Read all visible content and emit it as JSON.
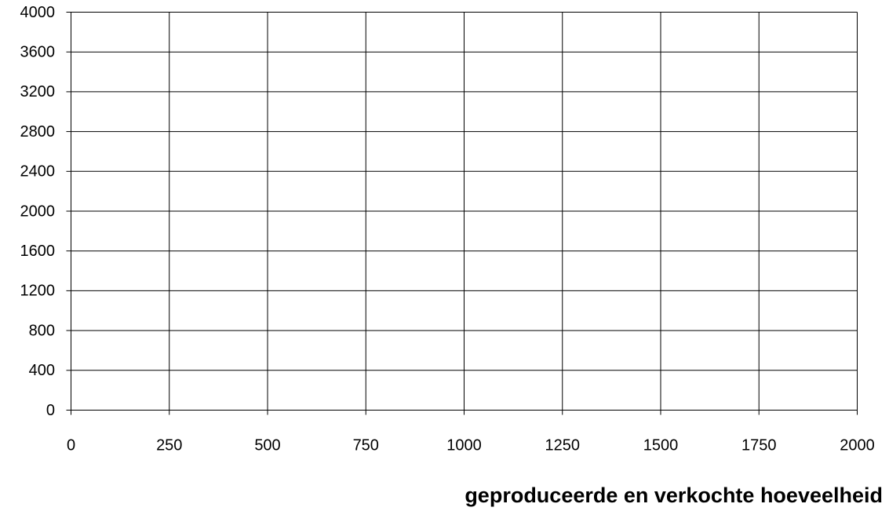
{
  "chart_data": {
    "type": "line",
    "series": [],
    "xlabel": "geproduceerde en verkochte hoeveelheid",
    "xlim": [
      0,
      2000
    ],
    "xticks": [
      0,
      250,
      500,
      750,
      1000,
      1250,
      1500,
      1750,
      2000
    ],
    "ylim": [
      0,
      4000
    ],
    "yticks": [
      0,
      400,
      800,
      1200,
      1600,
      2000,
      2400,
      2800,
      3200,
      3600,
      4000
    ],
    "grid": true
  }
}
